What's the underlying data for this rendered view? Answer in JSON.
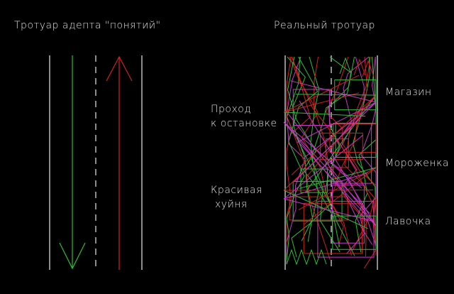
{
  "left": {
    "title": "Тротуар адепта \"понятий\""
  },
  "right": {
    "title": "Реальный тротуар",
    "left_labels": [
      [
        "Проход",
        "к остановке"
      ],
      [
        "Красивая",
        "хуйня"
      ]
    ],
    "right_labels": [
      "Магазин",
      "Мороженка",
      "Лавочка"
    ]
  }
}
